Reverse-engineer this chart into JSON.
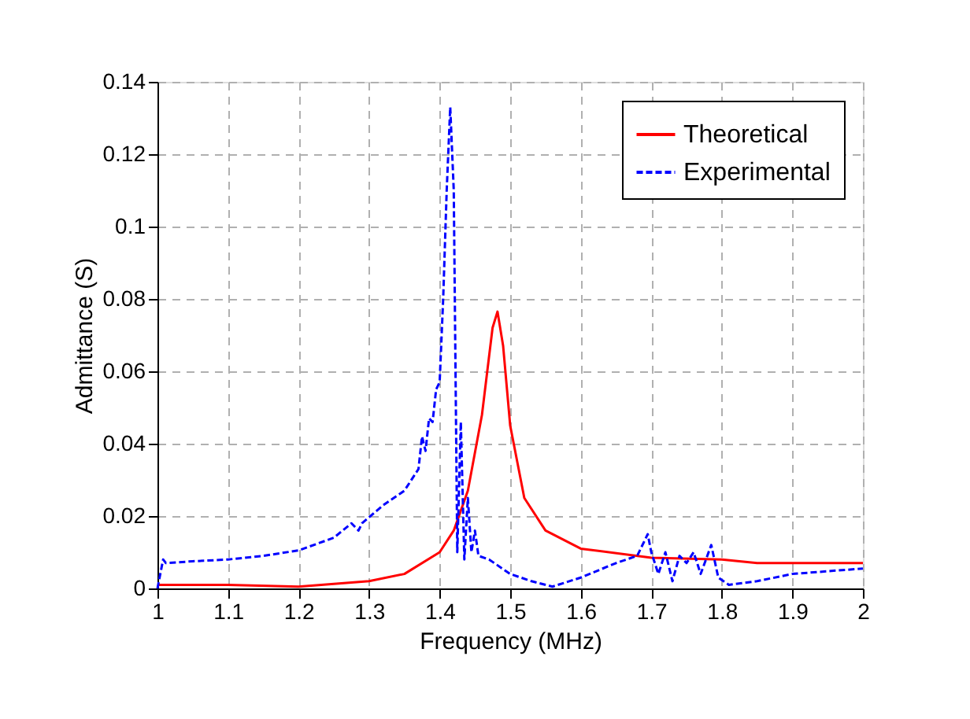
{
  "chart_data": {
    "type": "line",
    "xlabel": "Frequency (MHz)",
    "ylabel": "Admittance (S)",
    "xlim": [
      1,
      2
    ],
    "xticks": [
      1,
      1.1,
      1.2,
      1.3,
      1.4,
      1.5,
      1.6,
      1.7,
      1.8,
      1.9,
      2
    ],
    "ylim": [
      0,
      0.14
    ],
    "yticks": [
      0,
      0.02,
      0.04,
      0.06,
      0.08,
      0.1,
      0.12,
      0.14
    ],
    "grid": true,
    "legend": "top right",
    "series": [
      {
        "name": "Theoretical",
        "color": "#ff0000",
        "line_style": "solid",
        "x": [
          1.0,
          1.1,
          1.2,
          1.3,
          1.35,
          1.4,
          1.42,
          1.44,
          1.46,
          1.475,
          1.482,
          1.49,
          1.5,
          1.52,
          1.55,
          1.6,
          1.7,
          1.8,
          1.85,
          2.0
        ],
        "values": [
          0.001,
          0.001,
          0.0005,
          0.002,
          0.004,
          0.01,
          0.016,
          0.027,
          0.048,
          0.072,
          0.0765,
          0.067,
          0.045,
          0.025,
          0.016,
          0.011,
          0.0085,
          0.008,
          0.007,
          0.007
        ]
      },
      {
        "name": "Experimental",
        "color": "#0000ff",
        "line_style": "dashed",
        "x": [
          1.0,
          1.008,
          1.012,
          1.05,
          1.1,
          1.15,
          1.2,
          1.25,
          1.275,
          1.285,
          1.29,
          1.32,
          1.35,
          1.37,
          1.375,
          1.38,
          1.385,
          1.39,
          1.395,
          1.4,
          1.405,
          1.41,
          1.415,
          1.42,
          1.425,
          1.43,
          1.435,
          1.44,
          1.445,
          1.45,
          1.455,
          1.47,
          1.5,
          1.53,
          1.56,
          1.6,
          1.65,
          1.68,
          1.695,
          1.7,
          1.71,
          1.72,
          1.73,
          1.74,
          1.75,
          1.76,
          1.77,
          1.785,
          1.795,
          1.81,
          1.85,
          1.9,
          2.0
        ],
        "values": [
          0,
          0.008,
          0.007,
          0.0075,
          0.008,
          0.009,
          0.0105,
          0.014,
          0.018,
          0.016,
          0.018,
          0.023,
          0.027,
          0.033,
          0.042,
          0.038,
          0.047,
          0.046,
          0.055,
          0.057,
          0.08,
          0.11,
          0.133,
          0.11,
          0.01,
          0.046,
          0.008,
          0.025,
          0.01,
          0.016,
          0.009,
          0.008,
          0.004,
          0.002,
          0.0005,
          0.003,
          0.007,
          0.009,
          0.015,
          0.01,
          0.004,
          0.01,
          0.002,
          0.009,
          0.007,
          0.01,
          0.004,
          0.012,
          0.003,
          0.001,
          0.002,
          0.004,
          0.0055
        ]
      }
    ]
  }
}
